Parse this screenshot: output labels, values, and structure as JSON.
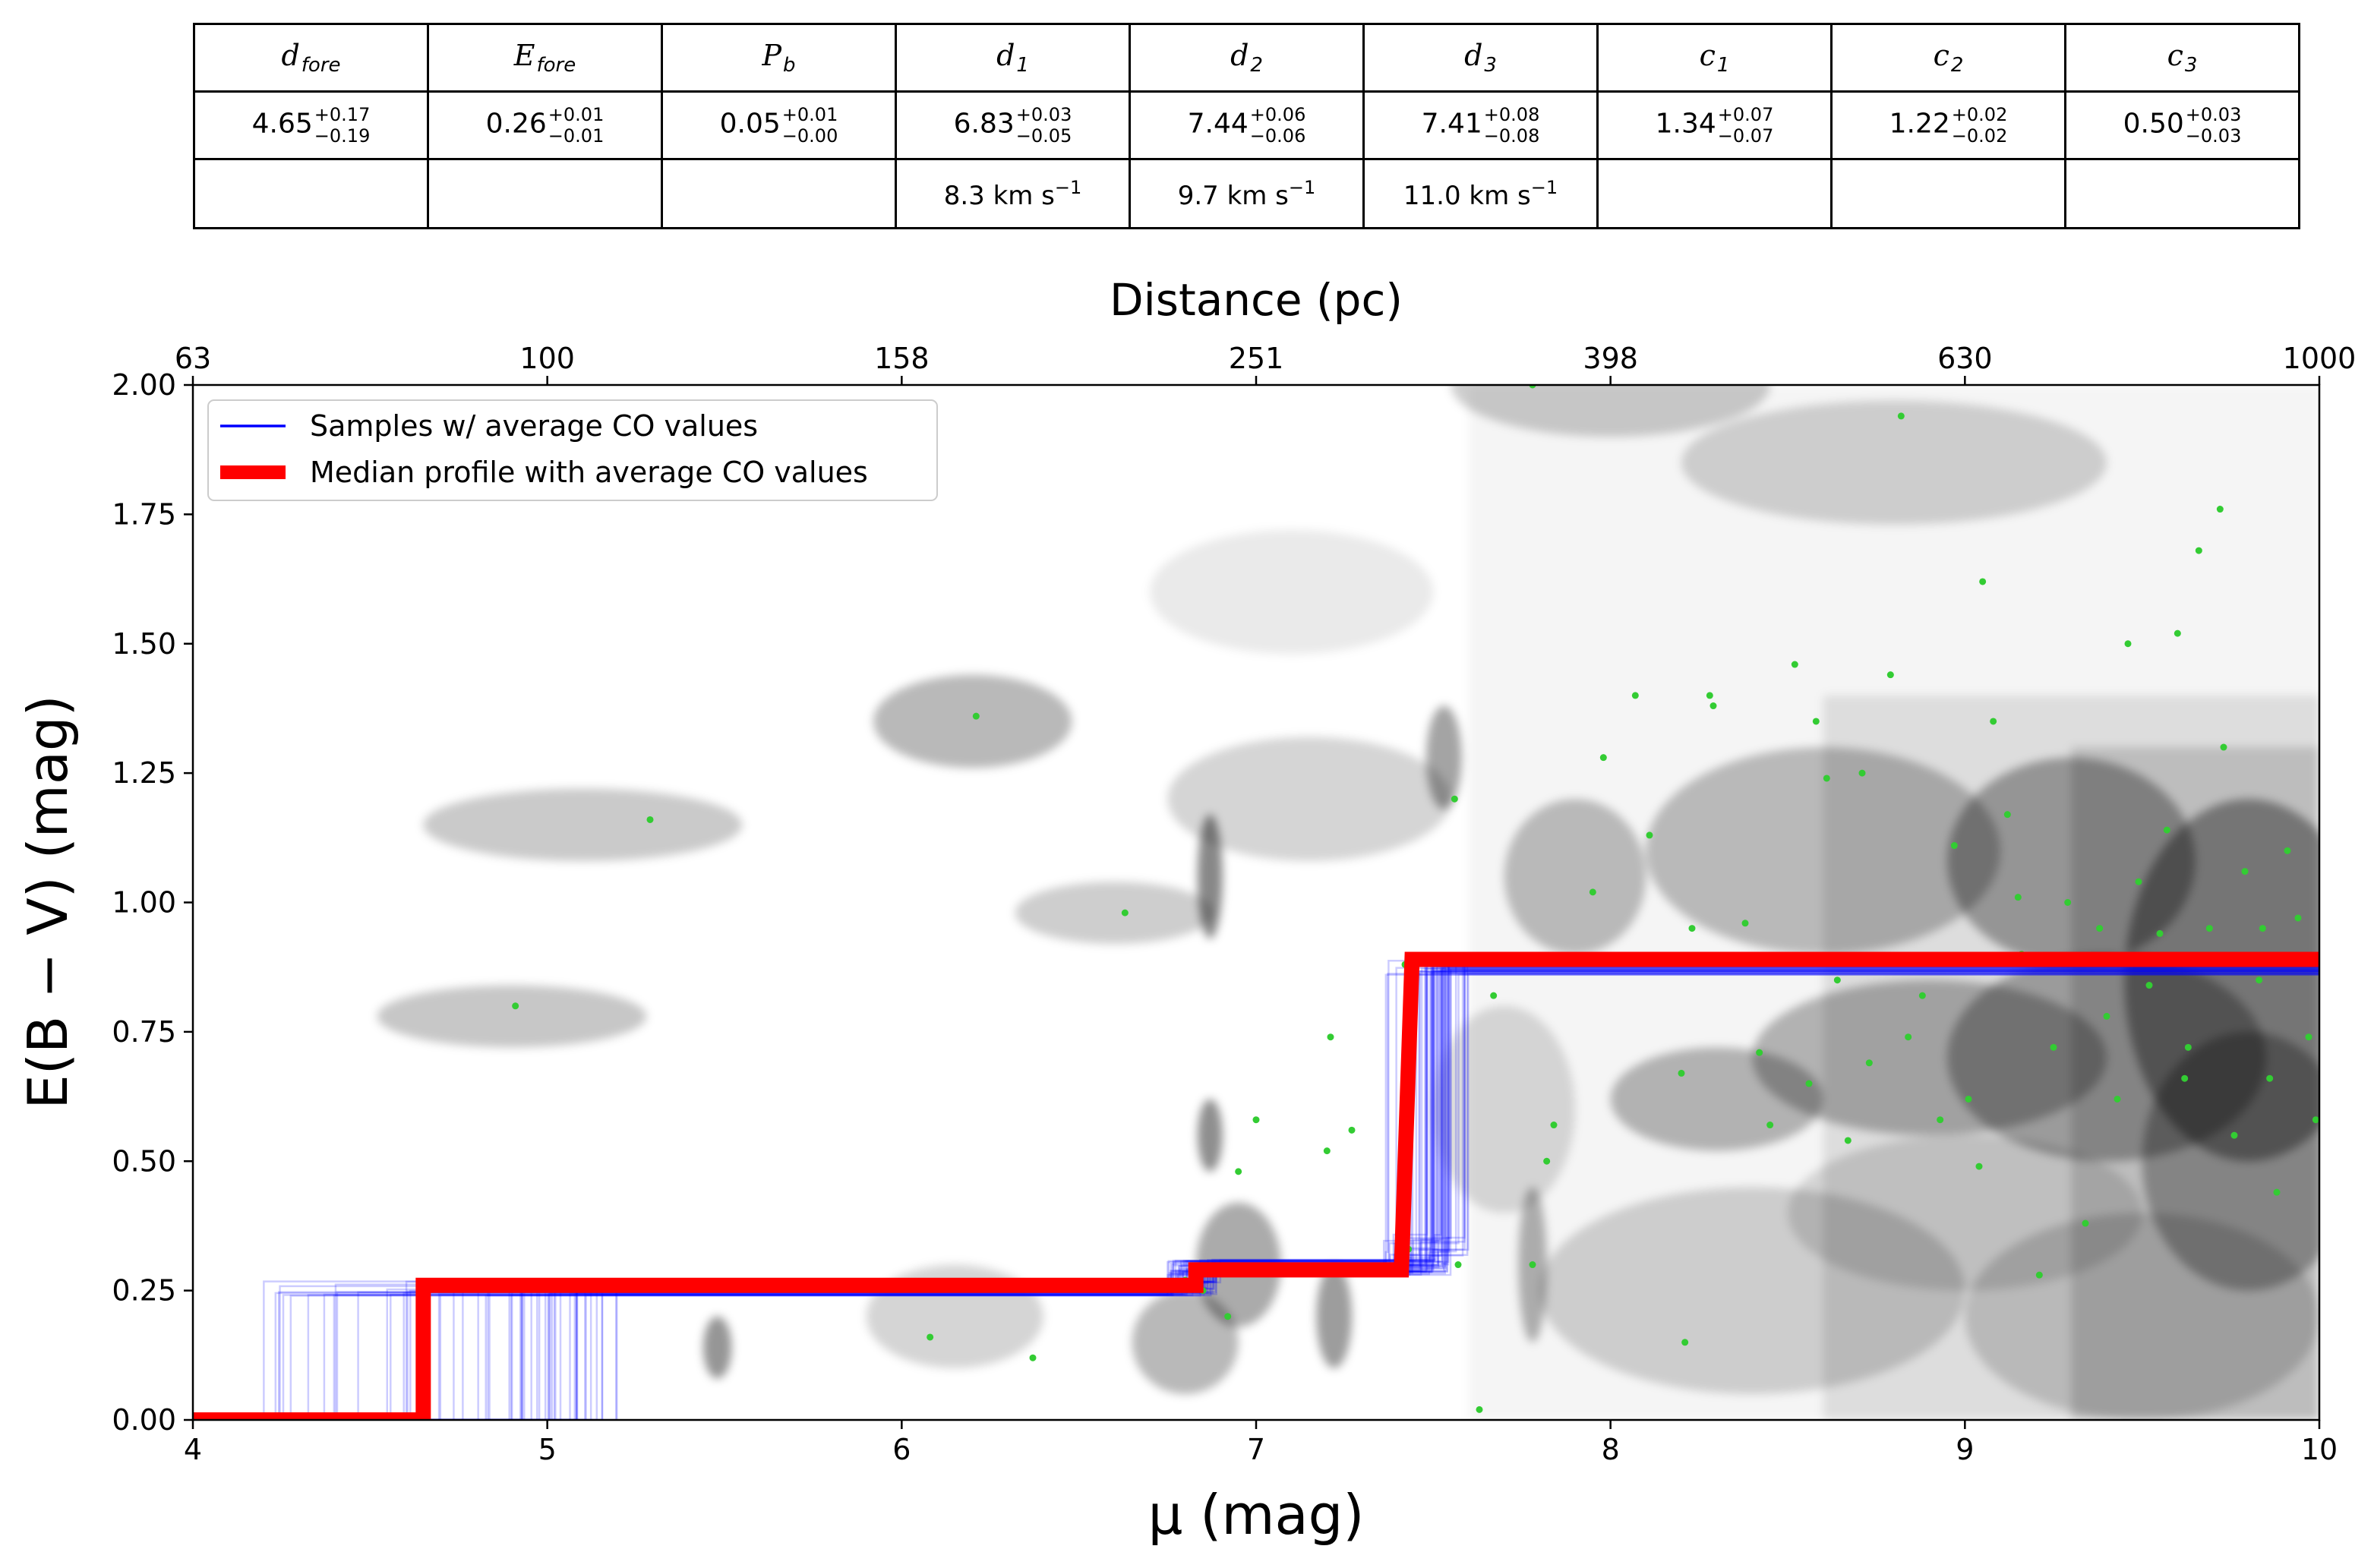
{
  "table": {
    "headers": [
      {
        "sym": "d",
        "sub": "fore"
      },
      {
        "sym": "E",
        "sub": "fore"
      },
      {
        "sym": "P",
        "sub": "b"
      },
      {
        "sym": "d",
        "sub": "1"
      },
      {
        "sym": "d",
        "sub": "2"
      },
      {
        "sym": "d",
        "sub": "3"
      },
      {
        "sym": "c",
        "sub": "1"
      },
      {
        "sym": "c",
        "sub": "2"
      },
      {
        "sym": "c",
        "sub": "3"
      }
    ],
    "values": [
      {
        "v": "4.65",
        "up": "+0.17",
        "lo": "−0.19"
      },
      {
        "v": "0.26",
        "up": "+0.01",
        "lo": "−0.01"
      },
      {
        "v": "0.05",
        "up": "+0.01",
        "lo": "−0.00"
      },
      {
        "v": "6.83",
        "up": "+0.03",
        "lo": "−0.05"
      },
      {
        "v": "7.44",
        "up": "+0.06",
        "lo": "−0.06"
      },
      {
        "v": "7.41",
        "up": "+0.08",
        "lo": "−0.08"
      },
      {
        "v": "1.34",
        "up": "+0.07",
        "lo": "−0.07"
      },
      {
        "v": "1.22",
        "up": "+0.02",
        "lo": "−0.02"
      },
      {
        "v": "0.50",
        "up": "+0.03",
        "lo": "−0.03"
      }
    ],
    "velocities": [
      "",
      "",
      "",
      "8.3 km s",
      "9.7 km s",
      "11.0 km s",
      "",
      "",
      ""
    ],
    "velocity_exp": "−1"
  },
  "chart_data": {
    "type": "line",
    "xlabel": "μ (mag)",
    "ylabel": "E(B − V) (mag)",
    "top_xlabel": "Distance (pc)",
    "xlim": [
      4,
      10
    ],
    "ylim": [
      0,
      2
    ],
    "x_ticks": [
      "4",
      "5",
      "6",
      "7",
      "8",
      "9",
      "10"
    ],
    "y_ticks": [
      "0.00",
      "0.25",
      "0.50",
      "0.75",
      "1.00",
      "1.25",
      "1.50",
      "1.75",
      "2.00"
    ],
    "top_ticks": [
      {
        "mu": 4,
        "label": "63"
      },
      {
        "mu": 5,
        "label": "100"
      },
      {
        "mu": 6,
        "label": "158"
      },
      {
        "mu": 7,
        "label": "251"
      },
      {
        "mu": 8,
        "label": "398"
      },
      {
        "mu": 9,
        "label": "630"
      },
      {
        "mu": 10,
        "label": "1000"
      }
    ],
    "legend": {
      "position": "top-left",
      "entries": [
        {
          "label": "Samples  w/ average CO values",
          "color": "#0000ff"
        },
        {
          "label": "Median profile with average CO values",
          "color": "#ff0000"
        }
      ]
    },
    "series": [
      {
        "name": "Median profile with average CO values",
        "color": "#ff0000",
        "points": [
          [
            4.0,
            0.0
          ],
          [
            4.65,
            0.0
          ],
          [
            4.65,
            0.26
          ],
          [
            6.83,
            0.26
          ],
          [
            6.83,
            0.29
          ],
          [
            7.41,
            0.29
          ],
          [
            7.44,
            0.89
          ],
          [
            10.0,
            0.89
          ]
        ]
      }
    ],
    "samples": {
      "color": "#0000ff",
      "count": 60,
      "d_fore_range": [
        4.2,
        5.2
      ],
      "d1_range": [
        6.75,
        6.9
      ],
      "d2_range": [
        7.33,
        7.6
      ],
      "d3_range": [
        7.35,
        7.55
      ],
      "e_fore_range": [
        0.24,
        0.27
      ],
      "step2_range": [
        0.28,
        0.31
      ],
      "step3_range": [
        0.3,
        0.36
      ],
      "top_range": [
        0.86,
        0.89
      ]
    },
    "stars": {
      "color": "#33cc33",
      "points": [
        [
          5.29,
          1.16
        ],
        [
          4.91,
          0.8
        ],
        [
          6.21,
          1.36
        ],
        [
          6.63,
          0.98
        ],
        [
          6.08,
          0.16
        ],
        [
          6.37,
          0.12
        ],
        [
          6.45,
          0.26
        ],
        [
          7.0,
          0.58
        ],
        [
          6.92,
          0.2
        ],
        [
          6.95,
          0.48
        ],
        [
          6.85,
          0.25
        ],
        [
          6.8,
          0.27
        ],
        [
          7.2,
          0.52
        ],
        [
          7.21,
          0.74
        ],
        [
          7.27,
          0.56
        ],
        [
          7.42,
          0.88
        ],
        [
          7.56,
          1.2
        ],
        [
          7.43,
          0.33
        ],
        [
          7.57,
          0.3
        ],
        [
          7.63,
          0.02
        ],
        [
          7.67,
          0.82
        ],
        [
          7.78,
          2.0
        ],
        [
          7.82,
          0.5
        ],
        [
          7.78,
          0.3
        ],
        [
          7.84,
          0.57
        ],
        [
          7.95,
          1.02
        ],
        [
          7.98,
          1.28
        ],
        [
          8.07,
          1.4
        ],
        [
          8.11,
          1.13
        ],
        [
          8.2,
          0.67
        ],
        [
          8.21,
          0.15
        ],
        [
          8.23,
          0.95
        ],
        [
          8.28,
          1.4
        ],
        [
          8.29,
          1.38
        ],
        [
          8.38,
          0.96
        ],
        [
          8.42,
          0.71
        ],
        [
          8.45,
          0.57
        ],
        [
          8.52,
          1.46
        ],
        [
          8.56,
          0.65
        ],
        [
          8.58,
          1.35
        ],
        [
          8.61,
          1.24
        ],
        [
          8.64,
          0.85
        ],
        [
          8.67,
          0.54
        ],
        [
          8.71,
          1.25
        ],
        [
          8.73,
          0.69
        ],
        [
          8.79,
          1.44
        ],
        [
          8.82,
          1.94
        ],
        [
          8.84,
          0.74
        ],
        [
          8.88,
          0.82
        ],
        [
          8.93,
          0.58
        ],
        [
          8.97,
          1.11
        ],
        [
          9.01,
          0.62
        ],
        [
          9.04,
          0.49
        ],
        [
          9.05,
          1.62
        ],
        [
          9.08,
          1.35
        ],
        [
          9.12,
          1.17
        ],
        [
          9.16,
          0.9
        ],
        [
          9.21,
          0.28
        ],
        [
          9.25,
          0.72
        ],
        [
          9.29,
          1.0
        ],
        [
          9.34,
          0.38
        ],
        [
          9.38,
          0.95
        ],
        [
          9.43,
          0.62
        ],
        [
          9.46,
          1.5
        ],
        [
          9.49,
          1.04
        ],
        [
          9.52,
          0.84
        ],
        [
          9.57,
          1.14
        ],
        [
          9.6,
          1.52
        ],
        [
          9.63,
          0.72
        ],
        [
          9.66,
          1.68
        ],
        [
          9.69,
          0.95
        ],
        [
          9.72,
          1.76
        ],
        [
          9.76,
          0.55
        ],
        [
          9.79,
          1.06
        ],
        [
          9.83,
          0.85
        ],
        [
          9.86,
          0.66
        ],
        [
          9.88,
          0.44
        ],
        [
          9.91,
          1.1
        ],
        [
          9.94,
          0.97
        ],
        [
          9.97,
          0.74
        ],
        [
          9.99,
          0.58
        ],
        [
          9.15,
          1.01
        ],
        [
          9.55,
          0.94
        ],
        [
          9.73,
          1.3
        ],
        [
          9.84,
          0.95
        ],
        [
          9.4,
          0.78
        ],
        [
          9.62,
          0.66
        ]
      ]
    },
    "density": {
      "blobs": [
        [
          8.0,
          2.0,
          0.45,
          0.1,
          0.35
        ],
        [
          8.8,
          1.85,
          0.6,
          0.12,
          0.3
        ],
        [
          6.2,
          1.35,
          0.28,
          0.09,
          0.5
        ],
        [
          5.1,
          1.15,
          0.45,
          0.07,
          0.38
        ],
        [
          4.9,
          0.78,
          0.38,
          0.06,
          0.4
        ],
        [
          6.6,
          0.98,
          0.28,
          0.06,
          0.35
        ],
        [
          6.87,
          1.05,
          0.035,
          0.12,
          0.85
        ],
        [
          7.53,
          1.28,
          0.05,
          0.1,
          0.65
        ],
        [
          7.15,
          1.2,
          0.4,
          0.12,
          0.3
        ],
        [
          7.9,
          1.05,
          0.2,
          0.15,
          0.45
        ],
        [
          8.6,
          1.1,
          0.5,
          0.2,
          0.45
        ],
        [
          9.3,
          1.08,
          0.35,
          0.2,
          0.6
        ],
        [
          9.8,
          0.85,
          0.35,
          0.35,
          0.7
        ],
        [
          9.4,
          0.7,
          0.45,
          0.2,
          0.55
        ],
        [
          8.9,
          0.7,
          0.5,
          0.15,
          0.5
        ],
        [
          8.3,
          0.62,
          0.3,
          0.1,
          0.5
        ],
        [
          9.8,
          0.5,
          0.3,
          0.25,
          0.55
        ],
        [
          9.0,
          0.4,
          0.5,
          0.15,
          0.25
        ],
        [
          6.87,
          0.55,
          0.035,
          0.07,
          0.8
        ],
        [
          6.95,
          0.3,
          0.12,
          0.12,
          0.6
        ],
        [
          7.22,
          0.2,
          0.05,
          0.1,
          0.7
        ],
        [
          6.8,
          0.15,
          0.15,
          0.1,
          0.5
        ],
        [
          5.48,
          0.14,
          0.04,
          0.06,
          0.75
        ],
        [
          6.15,
          0.2,
          0.25,
          0.1,
          0.3
        ],
        [
          7.78,
          0.3,
          0.04,
          0.15,
          0.55
        ],
        [
          7.7,
          0.6,
          0.2,
          0.2,
          0.25
        ],
        [
          8.4,
          0.25,
          0.6,
          0.2,
          0.3
        ],
        [
          9.5,
          0.2,
          0.5,
          0.2,
          0.3
        ],
        [
          7.1,
          1.6,
          0.4,
          0.12,
          0.15
        ]
      ]
    }
  }
}
